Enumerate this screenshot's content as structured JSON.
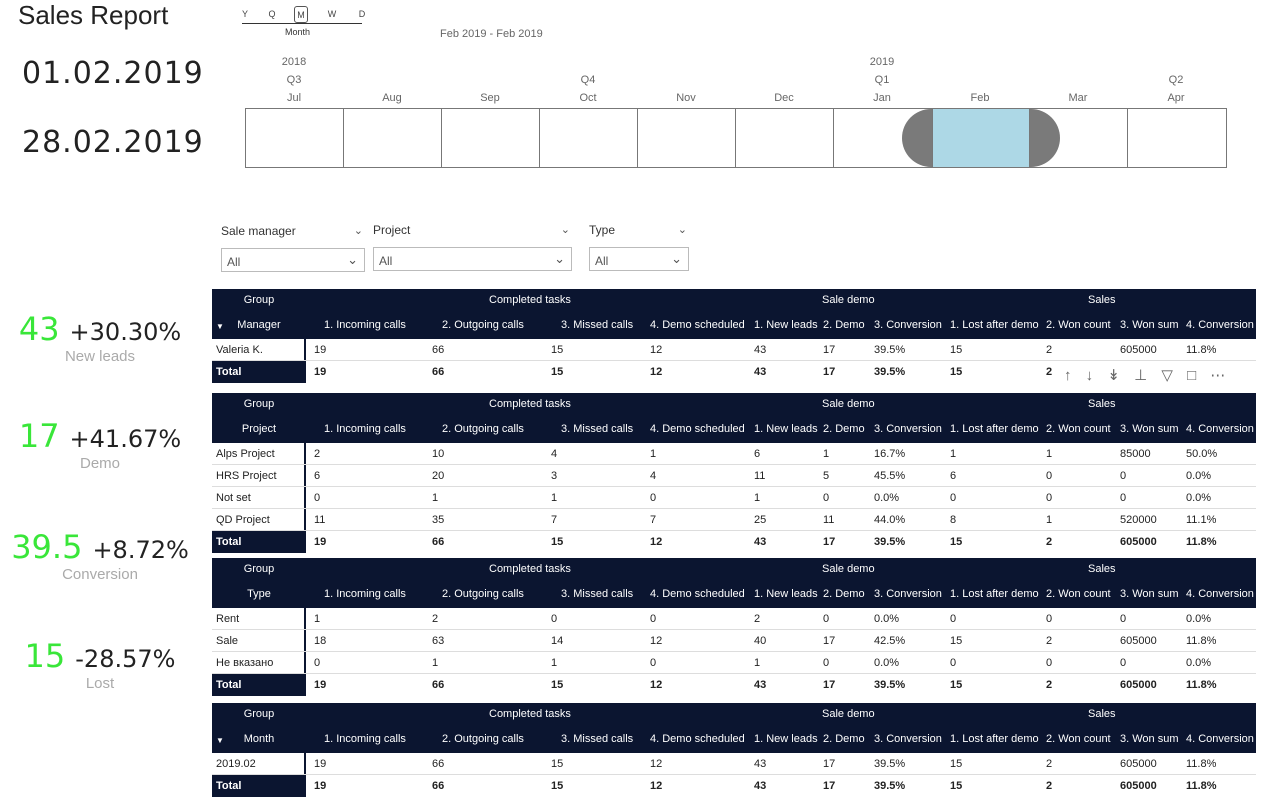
{
  "report_title": "Sales Report",
  "date_start": "01.02.2019",
  "date_end": "28.02.2019",
  "timeline": {
    "granularity": [
      "Y",
      "Q",
      "M",
      "W",
      "D"
    ],
    "granularity_selected": "M",
    "granularity_label": "Month",
    "range_label": "Feb 2019 - Feb 2019",
    "years": [
      {
        "label": "2018",
        "col": 0
      },
      {
        "label": "2019",
        "col": 6
      }
    ],
    "quarters": [
      {
        "label": "Q3",
        "col": 0
      },
      {
        "label": "Q4",
        "col": 3
      },
      {
        "label": "Q1",
        "col": 6
      },
      {
        "label": "Q2",
        "col": 9
      }
    ],
    "months": [
      "Jul",
      "Aug",
      "Sep",
      "Oct",
      "Nov",
      "Dec",
      "Jan",
      "Feb",
      "Mar",
      "Apr"
    ],
    "selected_month": "Feb"
  },
  "slicers": [
    {
      "label": "Sale manager",
      "value": "All"
    },
    {
      "label": "Project",
      "value": "All"
    },
    {
      "label": "Type",
      "value": "All"
    }
  ],
  "kpis": [
    {
      "value": "43",
      "change": "+30.30%",
      "caption": "New leads"
    },
    {
      "value": "17",
      "change": "+41.67%",
      "caption": "Demo"
    },
    {
      "value": "39.5",
      "change": "+8.72%",
      "caption": "Conversion"
    },
    {
      "value": "15",
      "change": "-28.57%",
      "caption": "Lost"
    }
  ],
  "groups": {
    "group": "Group",
    "completed": "Completed tasks",
    "sale_demo": "Sale demo",
    "sales": "Sales"
  },
  "columns": [
    "1. Incoming calls",
    "2. Outgoing calls",
    "3. Missed calls",
    "4. Demo scheduled",
    "1. New leads",
    "2. Demo",
    "3. Conversion",
    "1. Lost after demo",
    "2. Won count",
    "3. Won sum",
    "4. Conversion"
  ],
  "tables": [
    {
      "row_header": "Manager",
      "rows": [
        {
          "label": "Valeria K.",
          "cells": [
            "19",
            "66",
            "15",
            "12",
            "43",
            "17",
            "39.5%",
            "15",
            "2",
            "605000",
            "11.8%"
          ]
        }
      ],
      "total": {
        "label": "Total",
        "cells": [
          "19",
          "66",
          "15",
          "12",
          "43",
          "17",
          "39.5%",
          "15",
          "2",
          "",
          ""
        ]
      }
    },
    {
      "row_header": "Project",
      "rows": [
        {
          "label": "Alps Project",
          "cells": [
            "2",
            "10",
            "4",
            "1",
            "6",
            "1",
            "16.7%",
            "1",
            "1",
            "85000",
            "50.0%"
          ]
        },
        {
          "label": "HRS Project",
          "cells": [
            "6",
            "20",
            "3",
            "4",
            "11",
            "5",
            "45.5%",
            "6",
            "0",
            "0",
            "0.0%"
          ]
        },
        {
          "label": "Not set",
          "cells": [
            "0",
            "1",
            "1",
            "0",
            "1",
            "0",
            "0.0%",
            "0",
            "0",
            "0",
            "0.0%"
          ]
        },
        {
          "label": "QD Project",
          "cells": [
            "11",
            "35",
            "7",
            "7",
            "25",
            "11",
            "44.0%",
            "8",
            "1",
            "520000",
            "11.1%"
          ]
        }
      ],
      "total": {
        "label": "Total",
        "cells": [
          "19",
          "66",
          "15",
          "12",
          "43",
          "17",
          "39.5%",
          "15",
          "2",
          "605000",
          "11.8%"
        ]
      }
    },
    {
      "row_header": "Type",
      "rows": [
        {
          "label": "Rent",
          "cells": [
            "1",
            "2",
            "0",
            "0",
            "2",
            "0",
            "0.0%",
            "0",
            "0",
            "0",
            "0.0%"
          ]
        },
        {
          "label": "Sale",
          "cells": [
            "18",
            "63",
            "14",
            "12",
            "40",
            "17",
            "42.5%",
            "15",
            "2",
            "605000",
            "11.8%"
          ]
        },
        {
          "label": "Не вказано",
          "cells": [
            "0",
            "1",
            "1",
            "0",
            "1",
            "0",
            "0.0%",
            "0",
            "0",
            "0",
            "0.0%"
          ]
        }
      ],
      "total": {
        "label": "Total",
        "cells": [
          "19",
          "66",
          "15",
          "12",
          "43",
          "17",
          "39.5%",
          "15",
          "2",
          "605000",
          "11.8%"
        ]
      }
    },
    {
      "row_header": "Month",
      "rows": [
        {
          "label": "2019.02",
          "cells": [
            "19",
            "66",
            "15",
            "12",
            "43",
            "17",
            "39.5%",
            "15",
            "2",
            "605000",
            "11.8%"
          ]
        }
      ],
      "total": {
        "label": "Total",
        "cells": [
          "19",
          "66",
          "15",
          "12",
          "43",
          "17",
          "39.5%",
          "15",
          "2",
          "605000",
          "11.8%"
        ]
      }
    }
  ],
  "visual_toolbar": {
    "icons": [
      "arrow-up-icon",
      "arrow-down-icon",
      "double-arrow-down-icon",
      "hierarchy-icon",
      "filter-icon",
      "focus-mode-icon",
      "more-options-icon"
    ]
  }
}
